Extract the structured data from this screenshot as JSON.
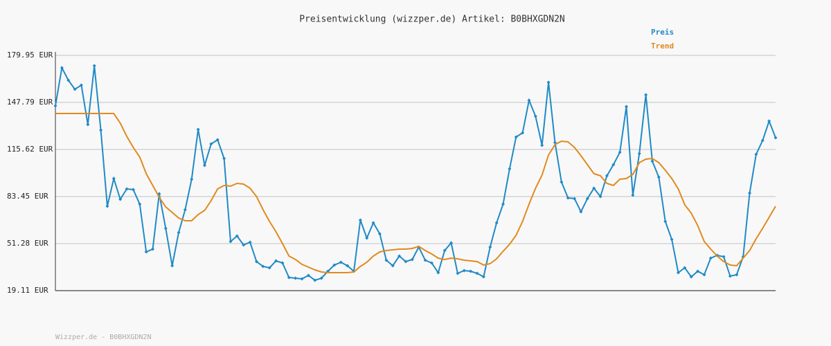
{
  "chart_data": {
    "type": "line",
    "title": "Preisentwicklung (wizzper.de) Artikel: B0BHXGDN2N",
    "footer": "Wizzper.de - B0BHXGDN2N",
    "legend": "top-right",
    "grid": true,
    "ylim": [
      19.11,
      179.95
    ],
    "yticks": [
      {
        "value": 19.11,
        "label": "19.11 EUR"
      },
      {
        "value": 51.28,
        "label": "51.28 EUR"
      },
      {
        "value": 83.45,
        "label": "83.45 EUR"
      },
      {
        "value": 115.62,
        "label": "115.62 EUR"
      },
      {
        "value": 147.79,
        "label": "147.79 EUR"
      },
      {
        "value": 179.95,
        "label": "179.95 EUR"
      }
    ],
    "series": [
      {
        "name": "Preis",
        "color": "#1f8ac6",
        "markers": true,
        "values": [
          145.42,
          171.44,
          162.92,
          156.77,
          159.61,
          132.64,
          172.85,
          128.86,
          76.82,
          95.75,
          81.55,
          88.65,
          88.18,
          78.24,
          45.6,
          47.49,
          85.34,
          61.69,
          36.14,
          58.85,
          74.46,
          95.27,
          129.33,
          104.73,
          119.4,
          122.24,
          109.46,
          52.7,
          56.48,
          50.33,
          52.22,
          38.98,
          35.67,
          34.72,
          39.45,
          38.03,
          28.1,
          27.63,
          27.15,
          29.52,
          26.21,
          27.63,
          32.36,
          36.61,
          38.51,
          36.14,
          32.36,
          67.36,
          55.06,
          65.47,
          57.9,
          39.92,
          36.14,
          42.76,
          38.98,
          40.4,
          48.91,
          39.92,
          38.03,
          31.41,
          46.55,
          51.75,
          30.94,
          32.83,
          32.36,
          30.94,
          28.57,
          48.91,
          65.47,
          78.24,
          102.37,
          124.13,
          126.97,
          149.2,
          138.32,
          118.45,
          161.5,
          120.34,
          93.38,
          82.5,
          82.03,
          73.04,
          82.03,
          89.12,
          83.45,
          97.64,
          105.21,
          113.72,
          144.94,
          84.39,
          112.78,
          152.99,
          107.57,
          96.69,
          66.42,
          54.12,
          31.41,
          34.72,
          28.57,
          32.36,
          29.99,
          41.34,
          43.24,
          42.29,
          29.04,
          29.99,
          42.29,
          85.81,
          112.3,
          121.76,
          135.01,
          123.66
        ]
      },
      {
        "name": "Trend",
        "color": "#e08a1e",
        "markers": false,
        "values": [
          140.21,
          140.21,
          140.21,
          140.21,
          140.21,
          140.21,
          140.21,
          140.21,
          140.21,
          140.21,
          133.59,
          124.6,
          117.03,
          110.41,
          99.06,
          91.02,
          82.97,
          76.35,
          72.57,
          68.78,
          66.89,
          66.89,
          71.15,
          73.98,
          80.61,
          88.65,
          91.02,
          90.54,
          92.43,
          91.97,
          89.12,
          83.45,
          74.46,
          66.42,
          59.32,
          51.28,
          42.76,
          40.4,
          37.09,
          35.19,
          33.3,
          31.88,
          31.41,
          31.41,
          31.41,
          31.41,
          31.88,
          35.67,
          38.51,
          42.76,
          45.6,
          46.55,
          47.02,
          47.49,
          47.49,
          47.97,
          49.39,
          46.55,
          44.18,
          41.34,
          40.4,
          41.34,
          40.87,
          39.92,
          39.45,
          38.98,
          36.61,
          37.56,
          40.87,
          46.07,
          50.8,
          56.95,
          66.42,
          78.24,
          89.12,
          98.11,
          111.83,
          118.93,
          121.29,
          120.82,
          117.03,
          111.36,
          105.21,
          99.06,
          97.64,
          92.43,
          91.02,
          95.27,
          95.75,
          98.58,
          106.63,
          108.99,
          109.46,
          106.63,
          101.42,
          95.75,
          88.65,
          77.77,
          72.09,
          63.58,
          52.7,
          47.49,
          42.76,
          38.98,
          36.61,
          36.14,
          41.34,
          46.55,
          54.59,
          61.69,
          69.25,
          76.82
        ]
      }
    ]
  }
}
